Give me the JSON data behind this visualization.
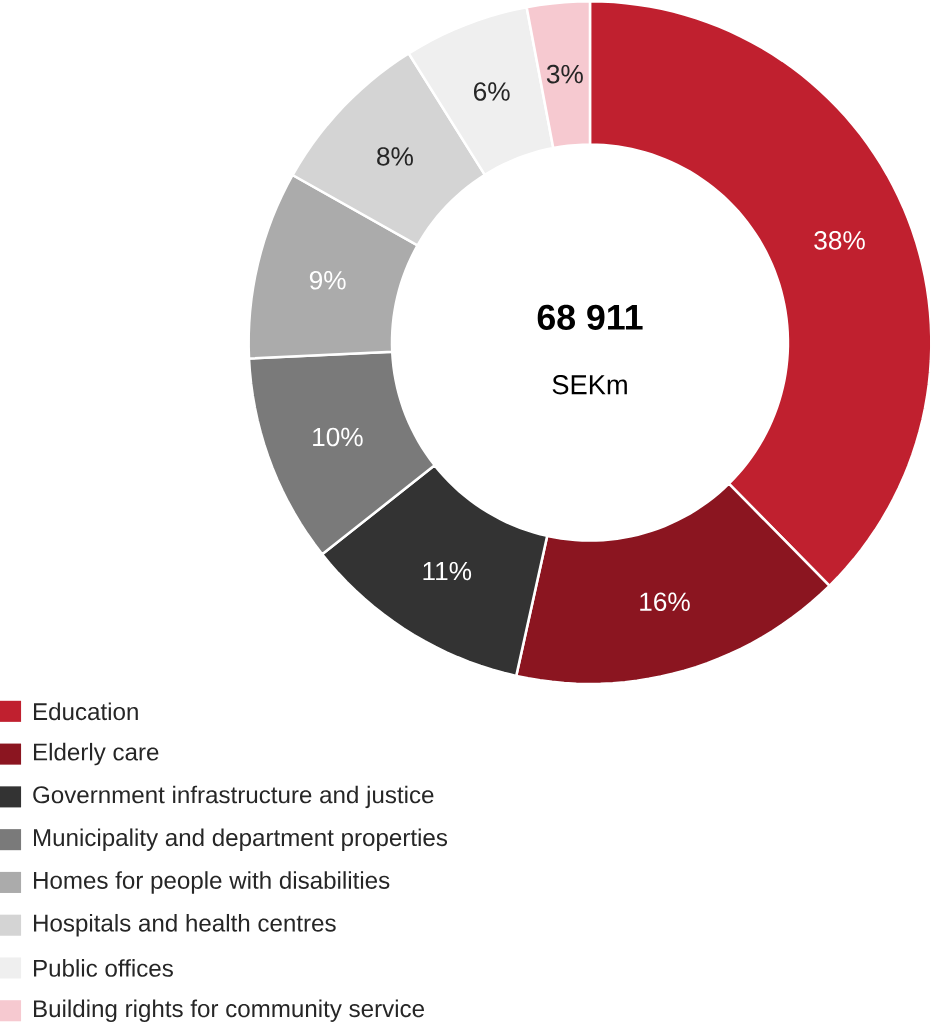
{
  "chart_data": {
    "type": "donut",
    "categories": [
      "Education",
      "Elderly care",
      "Government infrastructure and justice",
      "Municipality and department properties",
      "Homes for people with disabilities",
      "Hospitals and health centres",
      "Public offices",
      "Building rights for community service"
    ],
    "values": [
      38,
      16,
      11,
      10,
      9,
      8,
      6,
      3
    ],
    "colors": [
      "#c0202f",
      "#8b1520",
      "#333333",
      "#7a7a7a",
      "#ababab",
      "#d4d4d4",
      "#efefef",
      "#f6c9d0"
    ],
    "data_labels": true,
    "value_labels": [
      "38%",
      "16%",
      "11%",
      "10%",
      "9%",
      "8%",
      "6%",
      "3%"
    ],
    "annotations": [
      "68 911",
      "SEKm"
    ],
    "legend": "bottom"
  }
}
